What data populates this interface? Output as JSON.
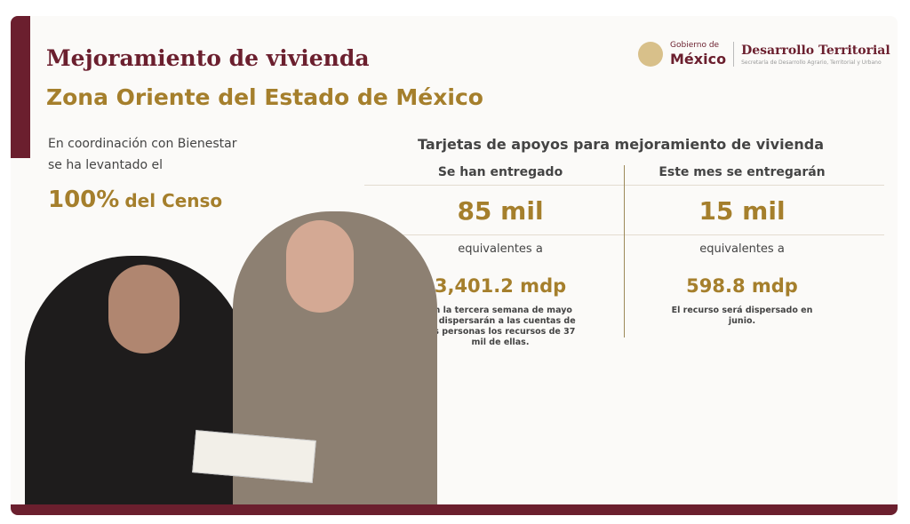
{
  "title": "Mejoramiento de vivienda",
  "subtitle": "Zona Oriente del Estado de México",
  "logo": {
    "line1": "Gobierno de",
    "line2": "México",
    "dept": "Desarrollo Territorial",
    "dept_sub": "Secretaría de Desarrollo Agrario, Territorial y Urbano"
  },
  "left": {
    "line1": "En coordinación con Bienestar",
    "line2": "se ha levantado el",
    "percent": "100%",
    "censo": "del Censo"
  },
  "heading": "Tarjetas de apoyos para mejoramiento de vivienda",
  "columns": [
    {
      "label": "Se han entregado",
      "number": "85 mil",
      "equiv": "equivalentes a",
      "amount": "3,401.2 mdp",
      "note": "En la tercera semana de mayo se dispersarán a las cuentas de las personas los recursos de 37 mil de ellas."
    },
    {
      "label": "Este mes se entregarán",
      "number": "15 mil",
      "equiv": "equivalentes a",
      "amount": "598.8 mdp",
      "note": "El recurso será dispersado en junio."
    }
  ],
  "colors": {
    "maroon": "#6b1f2e",
    "gold": "#a57f2c"
  }
}
